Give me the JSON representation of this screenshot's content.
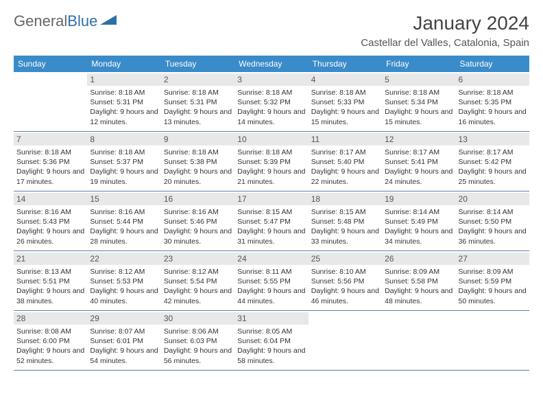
{
  "logo": {
    "text_gray": "General",
    "text_blue": "Blue"
  },
  "title": "January 2024",
  "location": "Castellar del Valles, Catalonia, Spain",
  "colors": {
    "header_bg": "#3a8bc9",
    "header_text": "#ffffff",
    "daynum_bg": "#e8e8e8",
    "row_border": "#5a7fa8",
    "logo_gray": "#666666",
    "logo_blue": "#2f6fa8"
  },
  "weekdays": [
    "Sunday",
    "Monday",
    "Tuesday",
    "Wednesday",
    "Thursday",
    "Friday",
    "Saturday"
  ],
  "weeks": [
    [
      {
        "empty": true
      },
      {
        "n": "1",
        "sr": "8:18 AM",
        "ss": "5:31 PM",
        "dl": "9 hours and 12 minutes."
      },
      {
        "n": "2",
        "sr": "8:18 AM",
        "ss": "5:31 PM",
        "dl": "9 hours and 13 minutes."
      },
      {
        "n": "3",
        "sr": "8:18 AM",
        "ss": "5:32 PM",
        "dl": "9 hours and 14 minutes."
      },
      {
        "n": "4",
        "sr": "8:18 AM",
        "ss": "5:33 PM",
        "dl": "9 hours and 15 minutes."
      },
      {
        "n": "5",
        "sr": "8:18 AM",
        "ss": "5:34 PM",
        "dl": "9 hours and 15 minutes."
      },
      {
        "n": "6",
        "sr": "8:18 AM",
        "ss": "5:35 PM",
        "dl": "9 hours and 16 minutes."
      }
    ],
    [
      {
        "n": "7",
        "sr": "8:18 AM",
        "ss": "5:36 PM",
        "dl": "9 hours and 17 minutes."
      },
      {
        "n": "8",
        "sr": "8:18 AM",
        "ss": "5:37 PM",
        "dl": "9 hours and 19 minutes."
      },
      {
        "n": "9",
        "sr": "8:18 AM",
        "ss": "5:38 PM",
        "dl": "9 hours and 20 minutes."
      },
      {
        "n": "10",
        "sr": "8:18 AM",
        "ss": "5:39 PM",
        "dl": "9 hours and 21 minutes."
      },
      {
        "n": "11",
        "sr": "8:17 AM",
        "ss": "5:40 PM",
        "dl": "9 hours and 22 minutes."
      },
      {
        "n": "12",
        "sr": "8:17 AM",
        "ss": "5:41 PM",
        "dl": "9 hours and 24 minutes."
      },
      {
        "n": "13",
        "sr": "8:17 AM",
        "ss": "5:42 PM",
        "dl": "9 hours and 25 minutes."
      }
    ],
    [
      {
        "n": "14",
        "sr": "8:16 AM",
        "ss": "5:43 PM",
        "dl": "9 hours and 26 minutes."
      },
      {
        "n": "15",
        "sr": "8:16 AM",
        "ss": "5:44 PM",
        "dl": "9 hours and 28 minutes."
      },
      {
        "n": "16",
        "sr": "8:16 AM",
        "ss": "5:46 PM",
        "dl": "9 hours and 30 minutes."
      },
      {
        "n": "17",
        "sr": "8:15 AM",
        "ss": "5:47 PM",
        "dl": "9 hours and 31 minutes."
      },
      {
        "n": "18",
        "sr": "8:15 AM",
        "ss": "5:48 PM",
        "dl": "9 hours and 33 minutes."
      },
      {
        "n": "19",
        "sr": "8:14 AM",
        "ss": "5:49 PM",
        "dl": "9 hours and 34 minutes."
      },
      {
        "n": "20",
        "sr": "8:14 AM",
        "ss": "5:50 PM",
        "dl": "9 hours and 36 minutes."
      }
    ],
    [
      {
        "n": "21",
        "sr": "8:13 AM",
        "ss": "5:51 PM",
        "dl": "9 hours and 38 minutes."
      },
      {
        "n": "22",
        "sr": "8:12 AM",
        "ss": "5:53 PM",
        "dl": "9 hours and 40 minutes."
      },
      {
        "n": "23",
        "sr": "8:12 AM",
        "ss": "5:54 PM",
        "dl": "9 hours and 42 minutes."
      },
      {
        "n": "24",
        "sr": "8:11 AM",
        "ss": "5:55 PM",
        "dl": "9 hours and 44 minutes."
      },
      {
        "n": "25",
        "sr": "8:10 AM",
        "ss": "5:56 PM",
        "dl": "9 hours and 46 minutes."
      },
      {
        "n": "26",
        "sr": "8:09 AM",
        "ss": "5:58 PM",
        "dl": "9 hours and 48 minutes."
      },
      {
        "n": "27",
        "sr": "8:09 AM",
        "ss": "5:59 PM",
        "dl": "9 hours and 50 minutes."
      }
    ],
    [
      {
        "n": "28",
        "sr": "8:08 AM",
        "ss": "6:00 PM",
        "dl": "9 hours and 52 minutes."
      },
      {
        "n": "29",
        "sr": "8:07 AM",
        "ss": "6:01 PM",
        "dl": "9 hours and 54 minutes."
      },
      {
        "n": "30",
        "sr": "8:06 AM",
        "ss": "6:03 PM",
        "dl": "9 hours and 56 minutes."
      },
      {
        "n": "31",
        "sr": "8:05 AM",
        "ss": "6:04 PM",
        "dl": "9 hours and 58 minutes."
      },
      {
        "empty": true
      },
      {
        "empty": true
      },
      {
        "empty": true
      }
    ]
  ],
  "labels": {
    "sunrise": "Sunrise:",
    "sunset": "Sunset:",
    "daylight": "Daylight:"
  }
}
